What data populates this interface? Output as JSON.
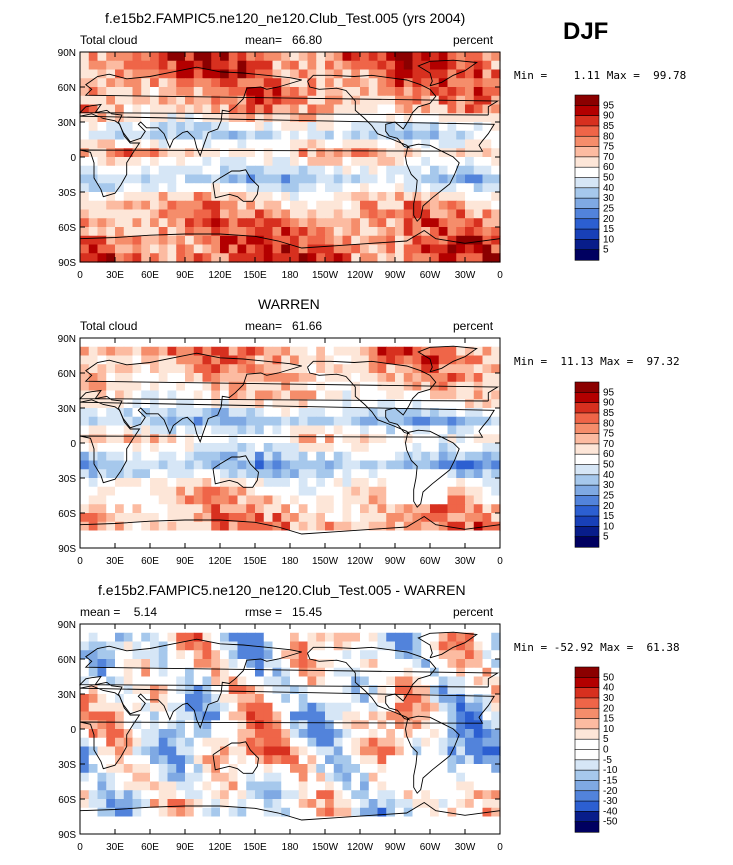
{
  "season": "DJF",
  "lat_ticks": [
    "90N",
    "60N",
    "30N",
    "0",
    "30S",
    "60S",
    "90S"
  ],
  "lon_ticks": [
    "0",
    "30E",
    "60E",
    "90E",
    "120E",
    "150E",
    "180",
    "150W",
    "120W",
    "90W",
    "60W",
    "30W",
    "0"
  ],
  "panels": [
    {
      "title": "f.e15b2.FAMPIC5.ne120_ne120.Club_Test.005 (yrs 2004)",
      "left_label": "Total cloud",
      "center_label": "mean=   66.80",
      "right_label": "percent",
      "minmax": "Min =    1.11 Max =  99.78",
      "cbar_levels": [
        "95",
        "90",
        "85",
        "80",
        "75",
        "70",
        "60",
        "50",
        "40",
        "30",
        "25",
        "20",
        "15",
        "10",
        "5"
      ],
      "cbar_colors": [
        "#8b0000",
        "#b30000",
        "#d7301f",
        "#ef6548",
        "#f58d6b",
        "#fcbba1",
        "#fde6d8",
        "#ffffff",
        "#d6e6f6",
        "#a6c8ec",
        "#7fa9e3",
        "#5283db",
        "#2c5fd1",
        "#1840b8",
        "#081d8a",
        "#000060"
      ]
    },
    {
      "title": "WARREN",
      "left_label": "Total cloud",
      "center_label": "mean=   61.66",
      "right_label": "percent",
      "minmax": "Min =  11.13 Max =  97.32",
      "cbar_levels": [
        "95",
        "90",
        "85",
        "80",
        "75",
        "70",
        "60",
        "50",
        "40",
        "30",
        "25",
        "20",
        "15",
        "10",
        "5"
      ],
      "cbar_colors": [
        "#8b0000",
        "#b30000",
        "#d7301f",
        "#ef6548",
        "#f58d6b",
        "#fcbba1",
        "#fde6d8",
        "#ffffff",
        "#d6e6f6",
        "#a6c8ec",
        "#7fa9e3",
        "#5283db",
        "#2c5fd1",
        "#1840b8",
        "#081d8a",
        "#000060"
      ]
    },
    {
      "title": "f.e15b2.FAMPIC5.ne120_ne120.Club_Test.005 - WARREN",
      "left_label": "mean =    5.14",
      "center_label": "rmse =   15.45",
      "right_label": "percent",
      "minmax": "Min = -52.92 Max =  61.38",
      "cbar_levels": [
        "50",
        "40",
        "30",
        "20",
        "15",
        "10",
        "5",
        "0",
        "-5",
        "-10",
        "-15",
        "-20",
        "-30",
        "-40",
        "-50"
      ],
      "cbar_colors": [
        "#8b0000",
        "#b30000",
        "#d7301f",
        "#ef6548",
        "#f58d6b",
        "#fcbba1",
        "#fde6d8",
        "#ffffff",
        "#ffffff",
        "#d6e6f6",
        "#a6c8ec",
        "#7fa9e3",
        "#5283db",
        "#2c5fd1",
        "#081d8a",
        "#000060"
      ]
    }
  ]
}
